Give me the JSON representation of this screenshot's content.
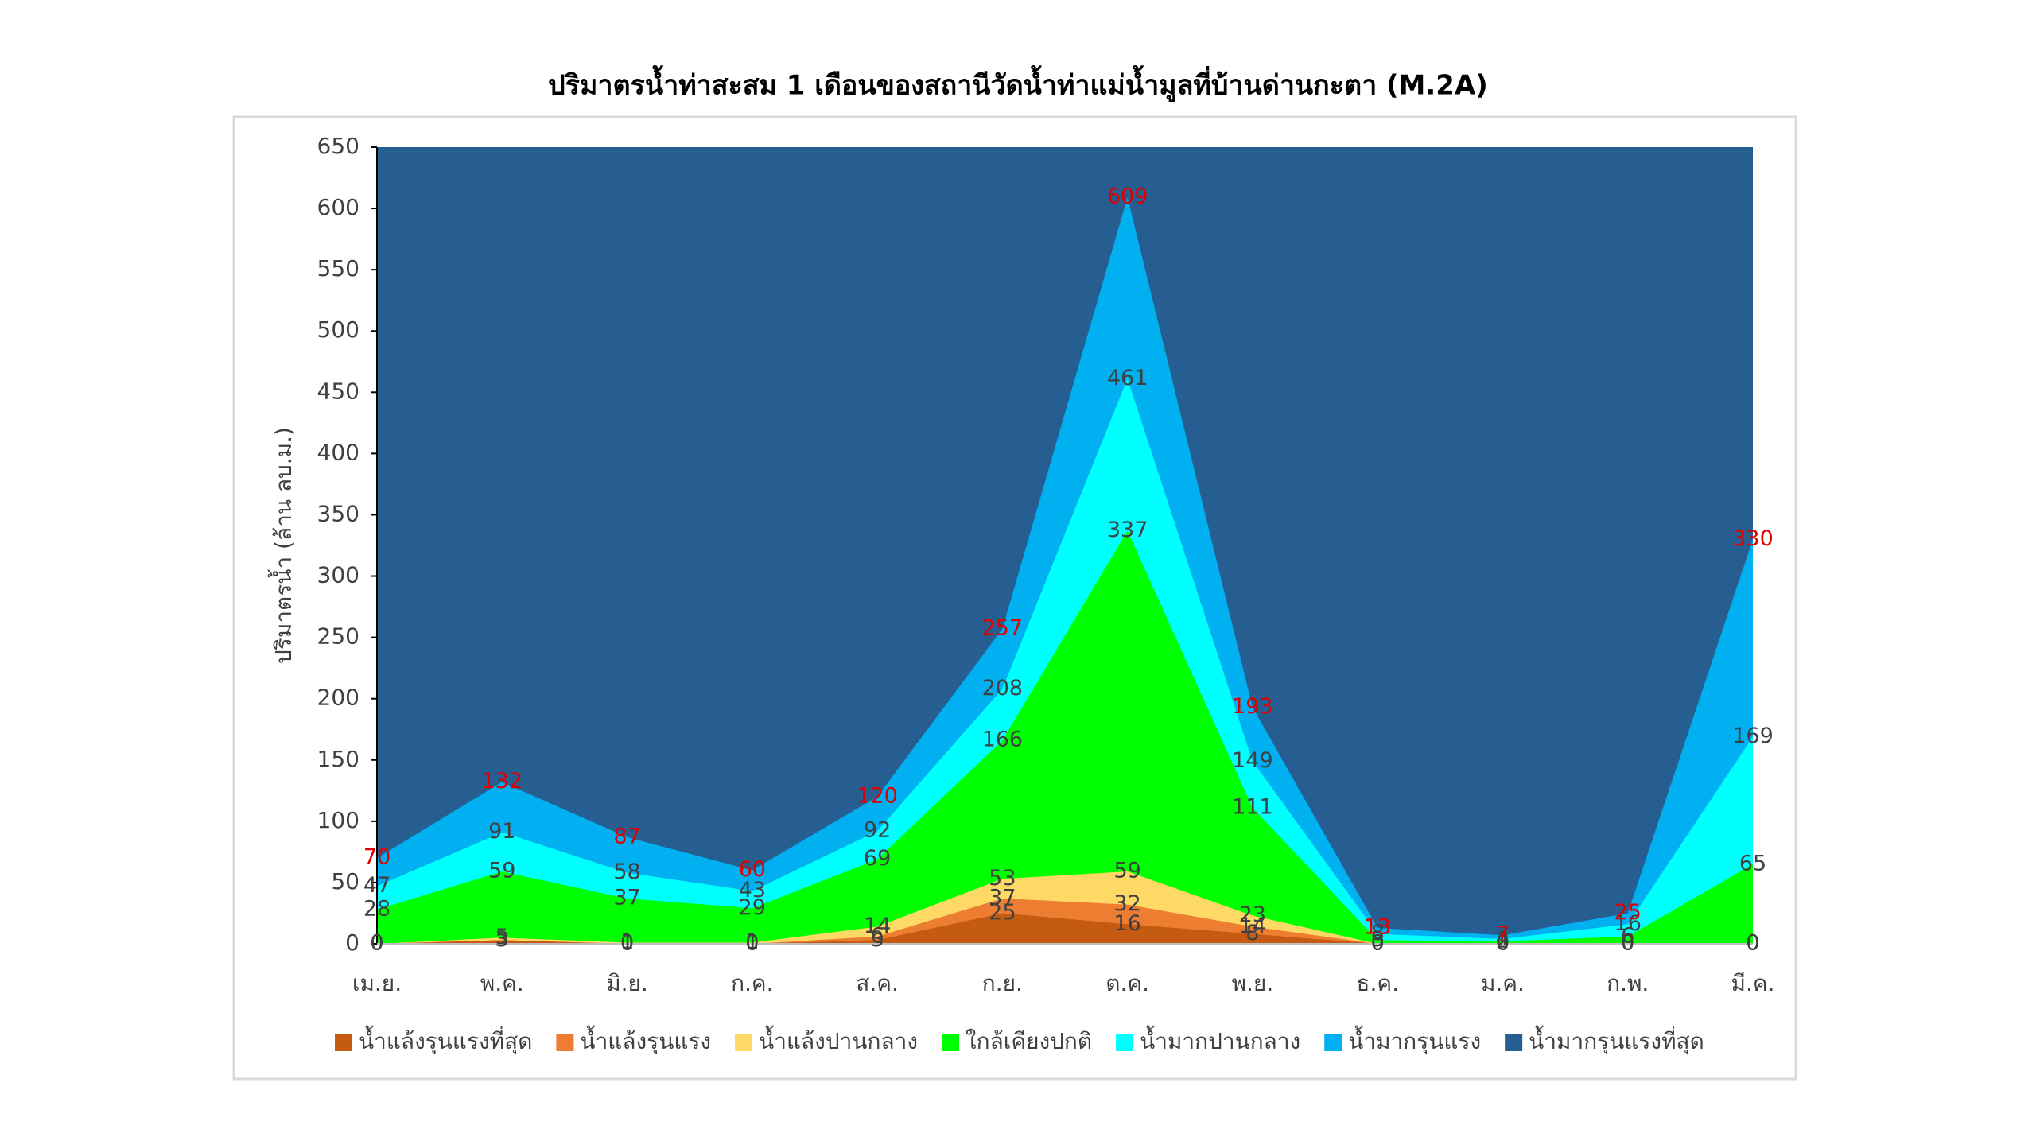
{
  "chart_data": {
    "type": "area",
    "title": "ปริมาตรน้ำท่าสะสม 1 เดือนของสถานีวัดน้ำท่าแม่น้ำมูลที่บ้านด่านกะตา (M.2A)",
    "y_label": "ปริมาตรน้ำ (ล้าน ลบ.ม.)",
    "categories": [
      "เม.ย.",
      "พ.ค.",
      "มิ.ย.",
      "ก.ค.",
      "ส.ค.",
      "ก.ย.",
      "ต.ค.",
      "พ.ย.",
      "ธ.ค.",
      "ม.ค.",
      "ก.พ.",
      "มี.ค."
    ],
    "ylim": [
      0,
      650
    ],
    "yticks": [
      0,
      50,
      100,
      150,
      200,
      250,
      300,
      350,
      400,
      450,
      500,
      550,
      600,
      650
    ],
    "legend": "bottom",
    "series": [
      {
        "name": "น้ำแล้งรุนแรงที่สุด",
        "color": "#c55a11",
        "label_color": "#404040",
        "values": [
          0,
          3,
          0,
          0,
          3,
          25,
          16,
          8,
          0,
          0,
          0,
          0
        ]
      },
      {
        "name": "น้ำแล้งรุนแรง",
        "color": "#ed7d31",
        "label_color": "#404040",
        "values": [
          0,
          3,
          0,
          0,
          6,
          37,
          32,
          14,
          0,
          0,
          0,
          0
        ]
      },
      {
        "name": "น้ำแล้งปานกลาง",
        "color": "#ffd966",
        "label_color": "#404040",
        "values": [
          0,
          5,
          1,
          1,
          14,
          53,
          59,
          23,
          0,
          0,
          0,
          0
        ]
      },
      {
        "name": "ใกล้เคียงปกติ",
        "color": "#00ff00",
        "label_color": "#404040",
        "values": [
          28,
          59,
          37,
          29,
          69,
          166,
          337,
          111,
          3,
          2,
          6,
          65
        ]
      },
      {
        "name": "น้ำมากปานกลาง",
        "color": "#00ffff",
        "label_color": "#404040",
        "values": [
          47,
          91,
          58,
          43,
          92,
          208,
          461,
          149,
          8,
          4,
          16,
          169
        ]
      },
      {
        "name": "น้ำมากรุนแรง",
        "color": "#00b0f0",
        "label_color": "#e00000",
        "values": [
          70,
          132,
          87,
          60,
          120,
          257,
          609,
          193,
          13,
          7,
          25,
          330
        ]
      },
      {
        "name": "น้ำมากรุนแรงที่สุด",
        "color": "#275e91",
        "values": [
          650,
          650,
          650,
          650,
          650,
          650,
          650,
          650,
          650,
          650,
          650,
          650
        ]
      }
    ]
  }
}
